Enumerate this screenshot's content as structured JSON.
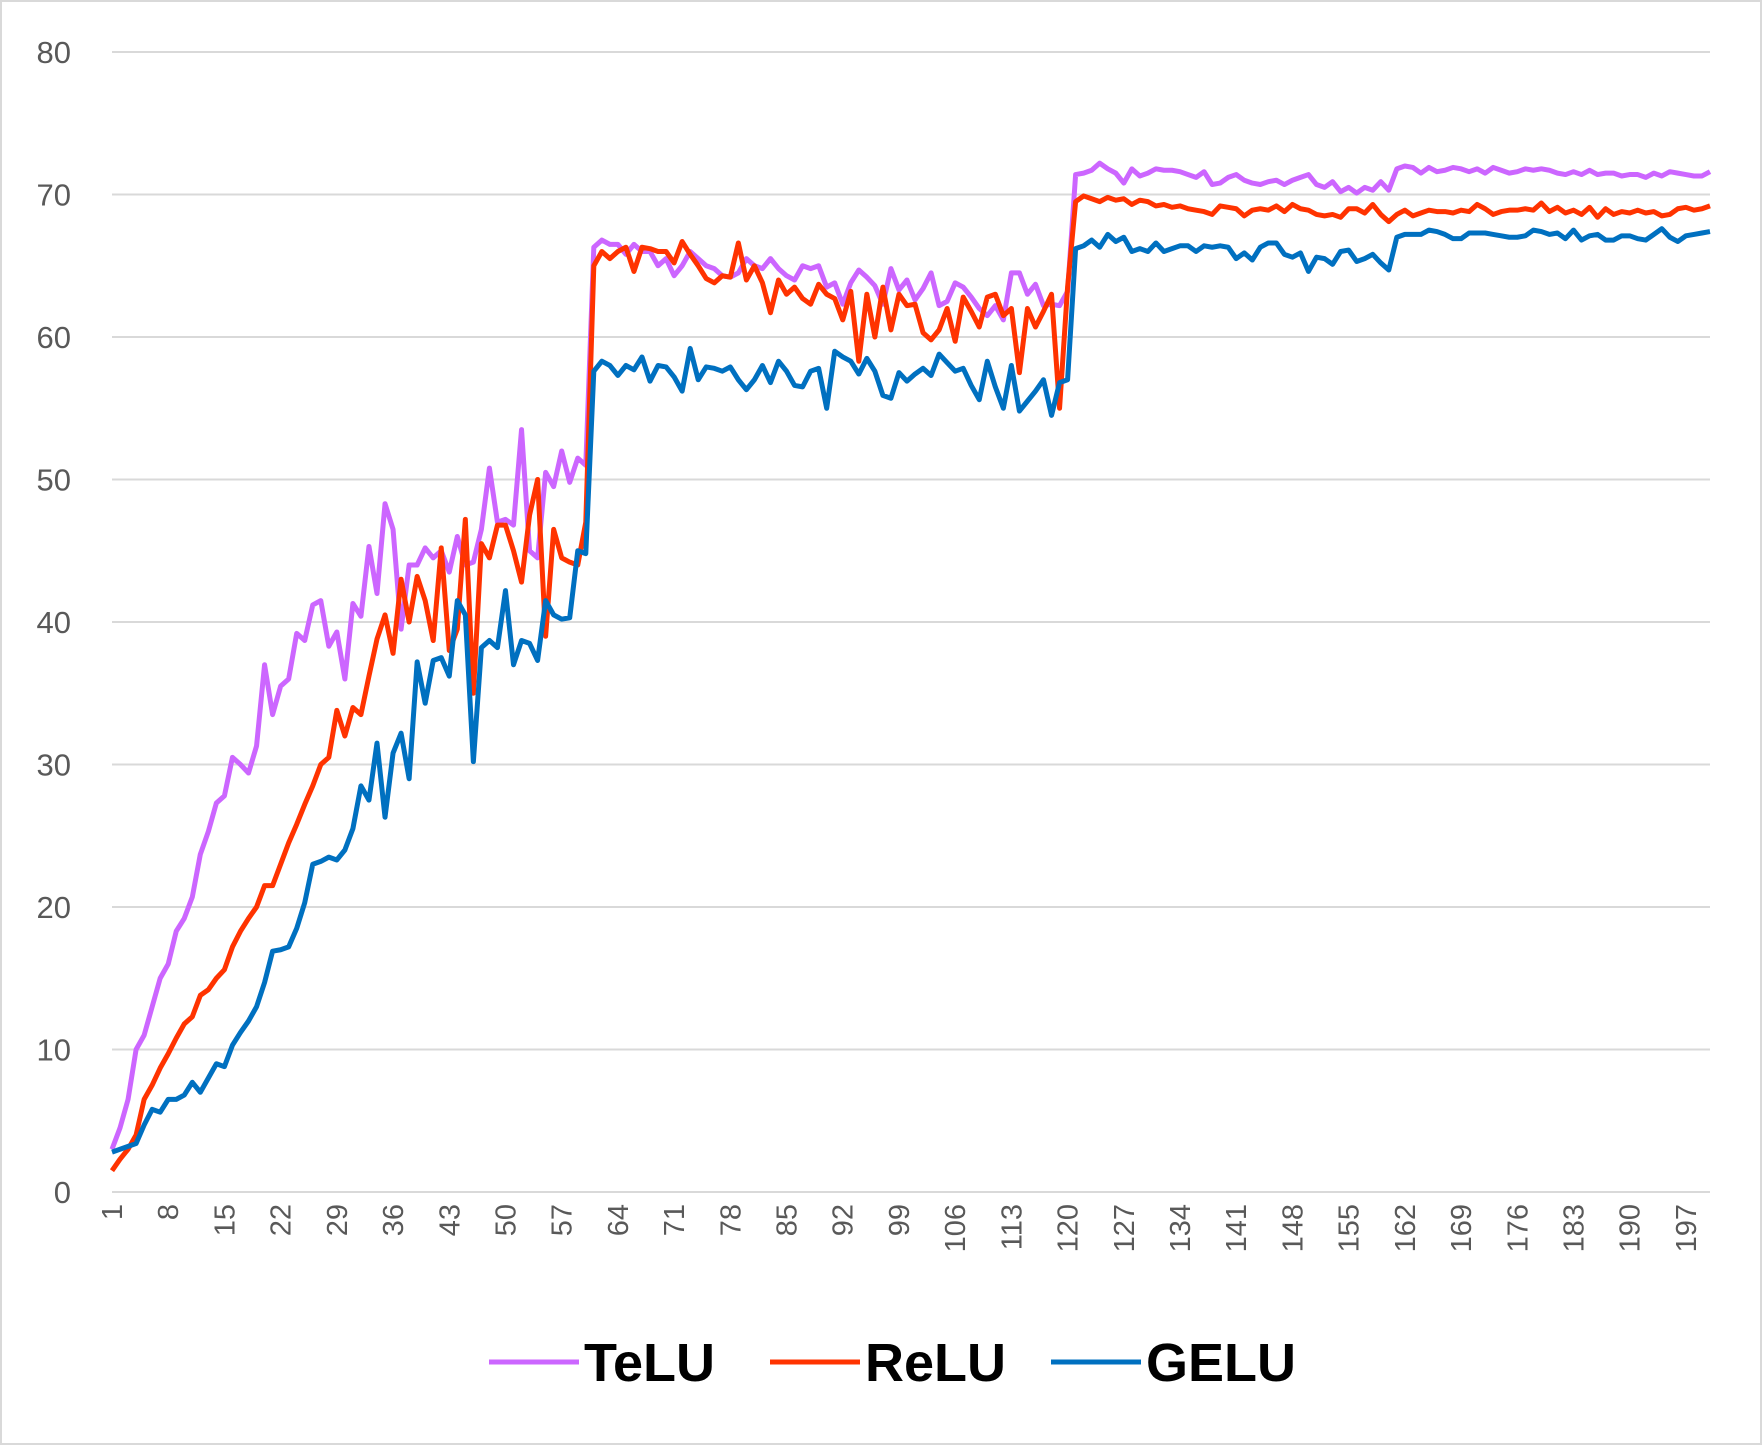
{
  "chart_data": {
    "type": "line",
    "categories": [
      "1",
      null,
      null,
      null,
      null,
      null,
      null,
      "8",
      null,
      null,
      null,
      null,
      null,
      null,
      "15",
      null,
      null,
      null,
      null,
      null,
      null,
      "22",
      null,
      null,
      null,
      null,
      null,
      null,
      "29",
      null,
      null,
      null,
      null,
      null,
      null,
      "36",
      null,
      null,
      null,
      null,
      null,
      null,
      "43",
      null,
      null,
      null,
      null,
      null,
      null,
      "50",
      null,
      null,
      null,
      null,
      null,
      null,
      "57",
      null,
      null,
      null,
      null,
      null,
      null,
      "64",
      null,
      null,
      null,
      null,
      null,
      null,
      "71",
      null,
      null,
      null,
      null,
      null,
      null,
      "78",
      null,
      null,
      null,
      null,
      null,
      null,
      "85",
      null,
      null,
      null,
      null,
      null,
      null,
      "92",
      null,
      null,
      null,
      null,
      null,
      null,
      "99",
      null,
      null,
      null,
      null,
      null,
      null,
      "106",
      null,
      null,
      null,
      null,
      null,
      null,
      "113",
      null,
      null,
      null,
      null,
      null,
      null,
      "120",
      null,
      null,
      null,
      null,
      null,
      null,
      "127",
      null,
      null,
      null,
      null,
      null,
      null,
      "134",
      null,
      null,
      null,
      null,
      null,
      null,
      "141",
      null,
      null,
      null,
      null,
      null,
      null,
      "148",
      null,
      null,
      null,
      null,
      null,
      null,
      "155",
      null,
      null,
      null,
      null,
      null,
      null,
      "162",
      null,
      null,
      null,
      null,
      null,
      null,
      "169",
      null,
      null,
      null,
      null,
      null,
      null,
      "176",
      null,
      null,
      null,
      null,
      null,
      null,
      "183",
      null,
      null,
      null,
      null,
      null,
      null,
      "190",
      null,
      null,
      null,
      null,
      null,
      null,
      "197",
      null,
      null,
      null
    ],
    "series": [
      {
        "name": "TeLU",
        "color": "#cc66ff",
        "values": [
          3,
          4.5,
          6.5,
          10,
          11,
          13,
          15,
          16,
          18.3,
          19.2,
          20.7,
          23.7,
          25.3,
          27.3,
          27.8,
          30.5,
          30,
          29.4,
          31.3,
          37,
          33.5,
          35.5,
          36,
          39.2,
          38.7,
          41.2,
          41.5,
          38.3,
          39.3,
          36,
          41.3,
          40.4,
          45.3,
          42,
          48.3,
          46.5,
          39.5,
          44,
          44,
          45.2,
          44.5,
          45,
          43.5,
          46,
          44,
          44.2,
          46.5,
          50.8,
          47,
          47.2,
          46.8,
          53.5,
          45,
          44.5,
          50.5,
          49.5,
          52,
          49.8,
          51.5,
          51,
          66.3,
          66.8,
          66.5,
          66.5,
          65.8,
          66.5,
          66,
          66,
          65,
          65.5,
          64.3,
          65,
          66,
          65.5,
          65,
          64.8,
          64.3,
          64.2,
          64.5,
          65.5,
          65,
          64.8,
          65.5,
          64.8,
          64.3,
          64,
          65,
          64.8,
          65,
          63.5,
          63.8,
          62.3,
          63.8,
          64.7,
          64.2,
          63.6,
          62.3,
          64.8,
          63.3,
          64,
          62.6,
          63.4,
          64.5,
          62.2,
          62.5,
          63.8,
          63.5,
          62.8,
          62,
          61.5,
          62.2,
          61.2,
          64.5,
          64.5,
          63,
          63.7,
          62.2,
          62.3,
          62.2,
          63.2,
          71.4,
          71.5,
          71.7,
          72.2,
          71.8,
          71.5,
          70.8,
          71.8,
          71.3,
          71.5,
          71.8,
          71.7,
          71.7,
          71.6,
          71.4,
          71.2,
          71.6,
          70.7,
          70.8,
          71.2,
          71.4,
          71,
          70.8,
          70.7,
          70.9,
          71,
          70.7,
          71,
          71.2,
          71.4,
          70.7,
          70.5,
          70.9,
          70.2,
          70.5,
          70.1,
          70.5,
          70.3,
          70.9,
          70.3,
          71.8,
          72,
          71.9,
          71.5,
          71.9,
          71.6,
          71.7,
          71.9,
          71.8,
          71.6,
          71.8,
          71.5,
          71.9,
          71.7,
          71.5,
          71.6,
          71.8,
          71.7,
          71.8,
          71.7,
          71.5,
          71.4,
          71.6,
          71.4,
          71.7,
          71.4,
          71.5,
          71.5,
          71.3,
          71.4,
          71.4,
          71.2,
          71.5,
          71.3,
          71.6,
          71.5,
          71.4,
          71.3,
          71.3,
          71.6
        ]
      },
      {
        "name": "ReLU",
        "color": "#ff3300",
        "values": [
          1.5,
          2.3,
          3,
          4,
          6.5,
          7.5,
          8.7,
          9.7,
          10.8,
          11.8,
          12.3,
          13.8,
          14.2,
          15,
          15.6,
          17.2,
          18.3,
          19.2,
          20,
          21.5,
          21.5,
          23,
          24.5,
          25.8,
          27.2,
          28.5,
          30,
          30.5,
          33.8,
          32,
          34,
          33.5,
          36.2,
          38.8,
          40.5,
          37.8,
          43,
          40,
          43.2,
          41.5,
          38.7,
          45.2,
          38,
          39.5,
          47.2,
          35,
          45.5,
          44.5,
          46.8,
          46.8,
          45,
          42.8,
          47.5,
          50,
          39,
          46.5,
          44.5,
          44.2,
          44,
          47,
          65,
          66,
          65.5,
          66,
          66.3,
          64.6,
          66.3,
          66.2,
          66,
          66,
          65.2,
          66.7,
          65.8,
          65,
          64.1,
          63.8,
          64.3,
          64.2,
          66.6,
          64,
          65,
          63.8,
          61.7,
          64,
          63,
          63.5,
          62.7,
          62.3,
          63.7,
          63,
          62.7,
          61.2,
          63.2,
          58.3,
          63,
          60,
          63.5,
          60.5,
          63,
          62.2,
          62.3,
          60.3,
          59.8,
          60.5,
          62,
          59.7,
          62.8,
          61.8,
          60.7,
          62.8,
          63,
          61.5,
          62,
          57.5,
          62,
          60.7,
          61.8,
          63,
          55,
          63.5,
          69.5,
          69.9,
          69.7,
          69.5,
          69.8,
          69.6,
          69.7,
          69.3,
          69.6,
          69.5,
          69.2,
          69.3,
          69.1,
          69.2,
          69,
          68.9,
          68.8,
          68.6,
          69.2,
          69.1,
          69,
          68.5,
          68.9,
          69,
          68.9,
          69.2,
          68.8,
          69.3,
          69,
          68.9,
          68.6,
          68.5,
          68.6,
          68.4,
          69,
          69,
          68.7,
          69.3,
          68.6,
          68.1,
          68.6,
          68.9,
          68.5,
          68.7,
          68.9,
          68.8,
          68.8,
          68.7,
          68.9,
          68.8,
          69.3,
          69,
          68.6,
          68.8,
          68.9,
          68.9,
          69,
          68.9,
          69.4,
          68.8,
          69.1,
          68.7,
          68.9,
          68.6,
          69.1,
          68.4,
          69,
          68.6,
          68.8,
          68.7,
          68.9,
          68.7,
          68.8,
          68.5,
          68.6,
          69,
          69.1,
          68.9,
          69,
          69.2
        ]
      },
      {
        "name": "GELU",
        "color": "#0070c0",
        "values": [
          2.8,
          3,
          3.2,
          3.4,
          4.7,
          5.8,
          5.6,
          6.5,
          6.5,
          6.8,
          7.7,
          7,
          8,
          9,
          8.8,
          10.3,
          11.2,
          12,
          13,
          14.7,
          16.9,
          17,
          17.2,
          18.5,
          20.3,
          23,
          23.2,
          23.5,
          23.3,
          24,
          25.5,
          28.5,
          27.5,
          31.5,
          26.3,
          30.8,
          32.2,
          29,
          37.2,
          34.3,
          37.3,
          37.5,
          36.2,
          41.5,
          40.5,
          30.2,
          38.2,
          38.7,
          38.2,
          42.2,
          37,
          38.7,
          38.5,
          37.3,
          41.5,
          40.5,
          40.2,
          40.3,
          45,
          44.8,
          57.6,
          58.3,
          58,
          57.3,
          58,
          57.7,
          58.6,
          56.9,
          58,
          57.9,
          57.2,
          56.2,
          59.2,
          57,
          57.9,
          57.8,
          57.6,
          57.9,
          57,
          56.3,
          57,
          58,
          56.8,
          58.3,
          57.6,
          56.6,
          56.5,
          57.6,
          57.8,
          55,
          59,
          58.6,
          58.3,
          57.4,
          58.5,
          57.6,
          55.9,
          55.7,
          57.5,
          56.9,
          57.4,
          57.8,
          57.3,
          58.8,
          58.2,
          57.6,
          57.8,
          56.6,
          55.6,
          58.3,
          56.5,
          55,
          58,
          54.8,
          55.5,
          56.2,
          57,
          54.5,
          56.8,
          57,
          66.2,
          66.4,
          66.8,
          66.3,
          67.2,
          66.7,
          67,
          66,
          66.2,
          66,
          66.6,
          66,
          66.2,
          66.4,
          66.4,
          66,
          66.4,
          66.3,
          66.4,
          66.3,
          65.5,
          65.9,
          65.4,
          66.3,
          66.6,
          66.6,
          65.8,
          65.6,
          65.9,
          64.6,
          65.6,
          65.5,
          65.1,
          66,
          66.1,
          65.3,
          65.5,
          65.8,
          65.2,
          64.7,
          67,
          67.2,
          67.2,
          67.2,
          67.5,
          67.4,
          67.2,
          66.9,
          66.9,
          67.3,
          67.3,
          67.3,
          67.2,
          67.1,
          67,
          67,
          67.1,
          67.5,
          67.4,
          67.2,
          67.3,
          66.9,
          67.5,
          66.8,
          67.1,
          67.2,
          66.8,
          66.8,
          67.1,
          67.1,
          66.9,
          66.8,
          67.2,
          67.6,
          67,
          66.7,
          67.1,
          67.2,
          67.3,
          67.4
        ]
      }
    ],
    "ylim": [
      0,
      80
    ],
    "yticks": [
      0,
      10,
      20,
      30,
      40,
      50,
      60,
      70,
      80
    ],
    "grid": true,
    "legend": "bottom"
  }
}
